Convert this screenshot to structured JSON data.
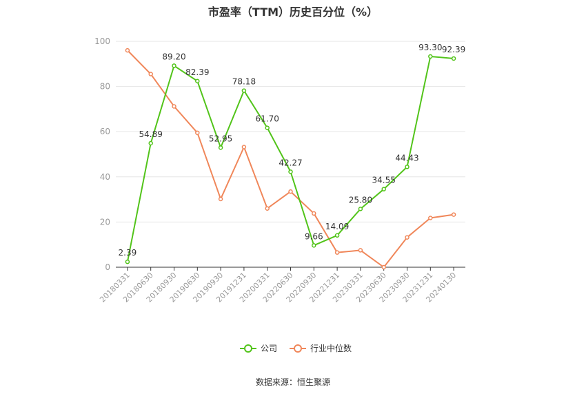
{
  "chart_data": {
    "type": "line",
    "title": "市盈率（TTM）历史百分位（%）",
    "x": [
      "20180331",
      "20180630",
      "20180930",
      "20190630",
      "20190930",
      "20191231",
      "20200331",
      "20220630",
      "20220930",
      "20221231",
      "20230331",
      "20230630",
      "20230930",
      "20231231",
      "20240130"
    ],
    "ylim": [
      0,
      100
    ],
    "yticks": [
      0,
      20,
      40,
      60,
      80,
      100
    ],
    "grid": true,
    "legend_position": "bottom",
    "series": [
      {
        "name": "公司",
        "color": "#52c41a",
        "values": [
          2.39,
          54.89,
          89.2,
          82.39,
          52.95,
          78.18,
          61.7,
          42.27,
          9.66,
          14.09,
          25.8,
          34.55,
          44.43,
          93.3,
          92.39
        ],
        "labels": [
          "2.39",
          "54.89",
          "89.20",
          "82.39",
          "52.95",
          "78.18",
          "61.70",
          "42.27",
          "9.66",
          "14.09",
          "25.80",
          "34.55",
          "44.43",
          "93.30",
          "92.39"
        ]
      },
      {
        "name": "行业中位数",
        "color": "#f0875a",
        "values": [
          96.0,
          85.5,
          71.2,
          59.5,
          30.2,
          53.2,
          26.0,
          33.5,
          23.8,
          6.5,
          7.5,
          0.0,
          13.2,
          21.8,
          23.3
        ]
      }
    ]
  },
  "source_text": "数据来源：恒生聚源"
}
